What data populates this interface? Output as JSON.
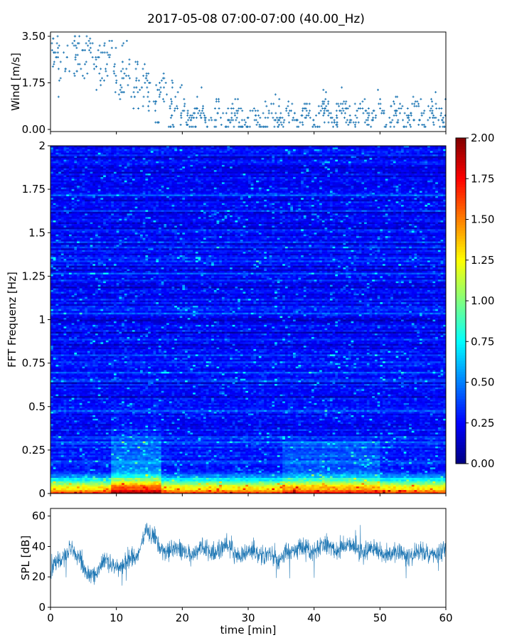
{
  "title": "2017-05-08 07:00-07:00 (40.00_Hz)",
  "chart_data": [
    {
      "type": "scatter",
      "ylabel": "Wind [m/s]",
      "xlim": [
        0,
        60
      ],
      "ylim": [
        0,
        3.5
      ],
      "yticks": [
        0,
        1.75,
        3.5
      ],
      "ytick_labels": [
        "0.00",
        "1.75",
        "3.50"
      ],
      "marker": "+",
      "color": "#1f77b4",
      "trend": [
        {
          "x": 0,
          "y": 2.6
        },
        {
          "x": 3,
          "y": 2.7
        },
        {
          "x": 6,
          "y": 2.75
        },
        {
          "x": 9,
          "y": 2.5
        },
        {
          "x": 12,
          "y": 2.1
        },
        {
          "x": 15,
          "y": 1.5
        },
        {
          "x": 18,
          "y": 1.0
        },
        {
          "x": 21,
          "y": 0.7
        },
        {
          "x": 25,
          "y": 0.45
        },
        {
          "x": 30,
          "y": 0.35
        },
        {
          "x": 35,
          "y": 0.5
        },
        {
          "x": 40,
          "y": 0.55
        },
        {
          "x": 45,
          "y": 0.6
        },
        {
          "x": 50,
          "y": 0.55
        },
        {
          "x": 55,
          "y": 0.5
        },
        {
          "x": 60,
          "y": 0.6
        }
      ]
    },
    {
      "type": "heatmap",
      "ylabel": "FFT Frequenz [Hz]",
      "xlim": [
        0,
        60
      ],
      "ylim": [
        0,
        2
      ],
      "yticks": [
        0,
        0.25,
        0.5,
        0.75,
        1,
        1.25,
        1.5,
        1.75,
        2
      ],
      "ytick_labels": [
        "0",
        "0.25",
        "0.5",
        "0.75",
        "1",
        "1.25",
        "1.5",
        "1.75",
        "2"
      ],
      "colormap": "jet",
      "colorbar": {
        "range": [
          0,
          2
        ],
        "ticks": [
          0,
          0.25,
          0.5,
          0.75,
          1,
          1.25,
          1.5,
          1.75,
          2
        ],
        "tick_labels": [
          "0.00",
          "0.25",
          "0.50",
          "0.75",
          "1.00",
          "1.25",
          "1.50",
          "1.75",
          "2.00"
        ]
      }
    },
    {
      "type": "line",
      "ylabel": "SPL [dB]",
      "xlabel": "time [min]",
      "xlim": [
        0,
        60
      ],
      "ylim": [
        0,
        65
      ],
      "xticks": [
        0,
        10,
        20,
        30,
        40,
        50,
        60
      ],
      "xtick_labels": [
        "0",
        "10",
        "20",
        "30",
        "40",
        "50",
        "60"
      ],
      "yticks": [
        0,
        20,
        40,
        60
      ],
      "ytick_labels": [
        "0",
        "20",
        "40",
        "60"
      ],
      "color": "#1f77b4",
      "trend": [
        {
          "x": 0,
          "y": 26
        },
        {
          "x": 1.5,
          "y": 29
        },
        {
          "x": 3,
          "y": 40
        },
        {
          "x": 4,
          "y": 33
        },
        {
          "x": 5.5,
          "y": 22
        },
        {
          "x": 7,
          "y": 24
        },
        {
          "x": 8.5,
          "y": 30
        },
        {
          "x": 10,
          "y": 27
        },
        {
          "x": 11.5,
          "y": 29
        },
        {
          "x": 13,
          "y": 33
        },
        {
          "x": 14.5,
          "y": 53
        },
        {
          "x": 15.5,
          "y": 44
        },
        {
          "x": 17,
          "y": 39
        },
        {
          "x": 20,
          "y": 36
        },
        {
          "x": 25,
          "y": 38
        },
        {
          "x": 30,
          "y": 35
        },
        {
          "x": 33,
          "y": 37
        },
        {
          "x": 34.5,
          "y": 28
        },
        {
          "x": 35.5,
          "y": 37
        },
        {
          "x": 40,
          "y": 38
        },
        {
          "x": 44,
          "y": 40
        },
        {
          "x": 50,
          "y": 36
        },
        {
          "x": 55,
          "y": 34
        },
        {
          "x": 60,
          "y": 37
        }
      ]
    }
  ]
}
